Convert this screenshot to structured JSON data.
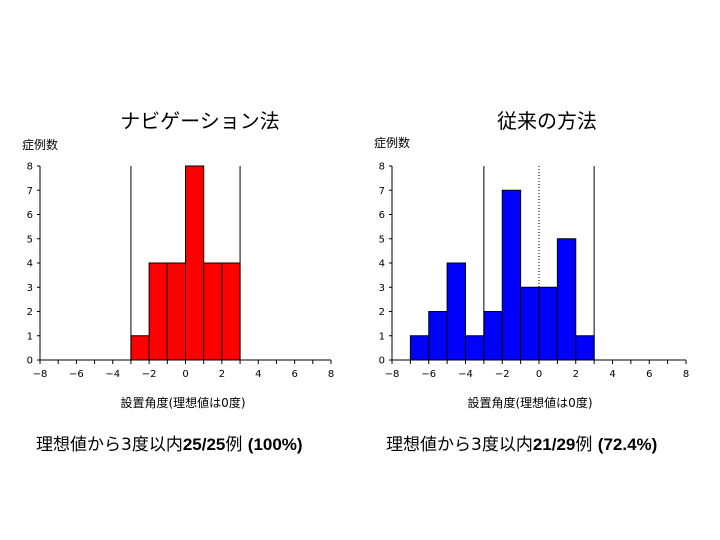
{
  "chart_data": [
    {
      "type": "bar",
      "title": "ナビゲーション法",
      "ylabel": "症例数",
      "xlabel": "設置角度(理想値は0度)",
      "color": "#ff0000",
      "xlim": [
        -8,
        8
      ],
      "ylim": [
        0,
        8
      ],
      "xticks": [
        "-8",
        "-6",
        "-4",
        "-2",
        "0",
        "2",
        "4",
        "6",
        "8"
      ],
      "yticks": [
        "0",
        "1",
        "2",
        "3",
        "4",
        "5",
        "6",
        "7",
        "8"
      ],
      "bin_width": 1,
      "bins": [
        {
          "x0": -3,
          "x1": -2,
          "value": 1
        },
        {
          "x0": -2,
          "x1": -1,
          "value": 4
        },
        {
          "x0": -1,
          "x1": 0,
          "value": 4
        },
        {
          "x0": 0,
          "x1": 1,
          "value": 8
        },
        {
          "x0": 1,
          "x1": 2,
          "value": 4
        },
        {
          "x0": 2,
          "x1": 3,
          "value": 4
        }
      ],
      "reference_lines": [
        {
          "x": -3,
          "style": "solid"
        },
        {
          "x": 3,
          "style": "solid"
        }
      ],
      "grid": false
    },
    {
      "type": "bar",
      "title": "従来の方法",
      "ylabel": "症例数",
      "xlabel": "設置角度(理想値は0度)",
      "color": "#0000ff",
      "xlim": [
        -8,
        8
      ],
      "ylim": [
        0,
        8
      ],
      "xticks": [
        "-8",
        "-6",
        "-4",
        "-2",
        "0",
        "2",
        "4",
        "6",
        "8"
      ],
      "yticks": [
        "0",
        "1",
        "2",
        "3",
        "4",
        "5",
        "6",
        "7",
        "8"
      ],
      "bin_width": 1,
      "bins": [
        {
          "x0": -7,
          "x1": -6,
          "value": 1
        },
        {
          "x0": -6,
          "x1": -5,
          "value": 2
        },
        {
          "x0": -5,
          "x1": -4,
          "value": 4
        },
        {
          "x0": -4,
          "x1": -3,
          "value": 1
        },
        {
          "x0": -3,
          "x1": -2,
          "value": 2
        },
        {
          "x0": -2,
          "x1": -1,
          "value": 7
        },
        {
          "x0": -1,
          "x1": 0,
          "value": 3
        },
        {
          "x0": 0,
          "x1": 1,
          "value": 3
        },
        {
          "x0": 1,
          "x1": 2,
          "value": 5
        },
        {
          "x0": 2,
          "x1": 3,
          "value": 1
        }
      ],
      "reference_lines": [
        {
          "x": -3,
          "style": "solid"
        },
        {
          "x": 0,
          "style": "dotted"
        },
        {
          "x": 3,
          "style": "solid"
        }
      ],
      "grid": false
    }
  ],
  "summaries": [
    {
      "prefix": "理想値から3度以内",
      "ratio": "25/25",
      "unit": "例",
      "percent": "(100%)"
    },
    {
      "prefix": "理想値から3度以内",
      "ratio": "21/29",
      "unit": "例",
      "percent": "(72.4%)"
    }
  ]
}
